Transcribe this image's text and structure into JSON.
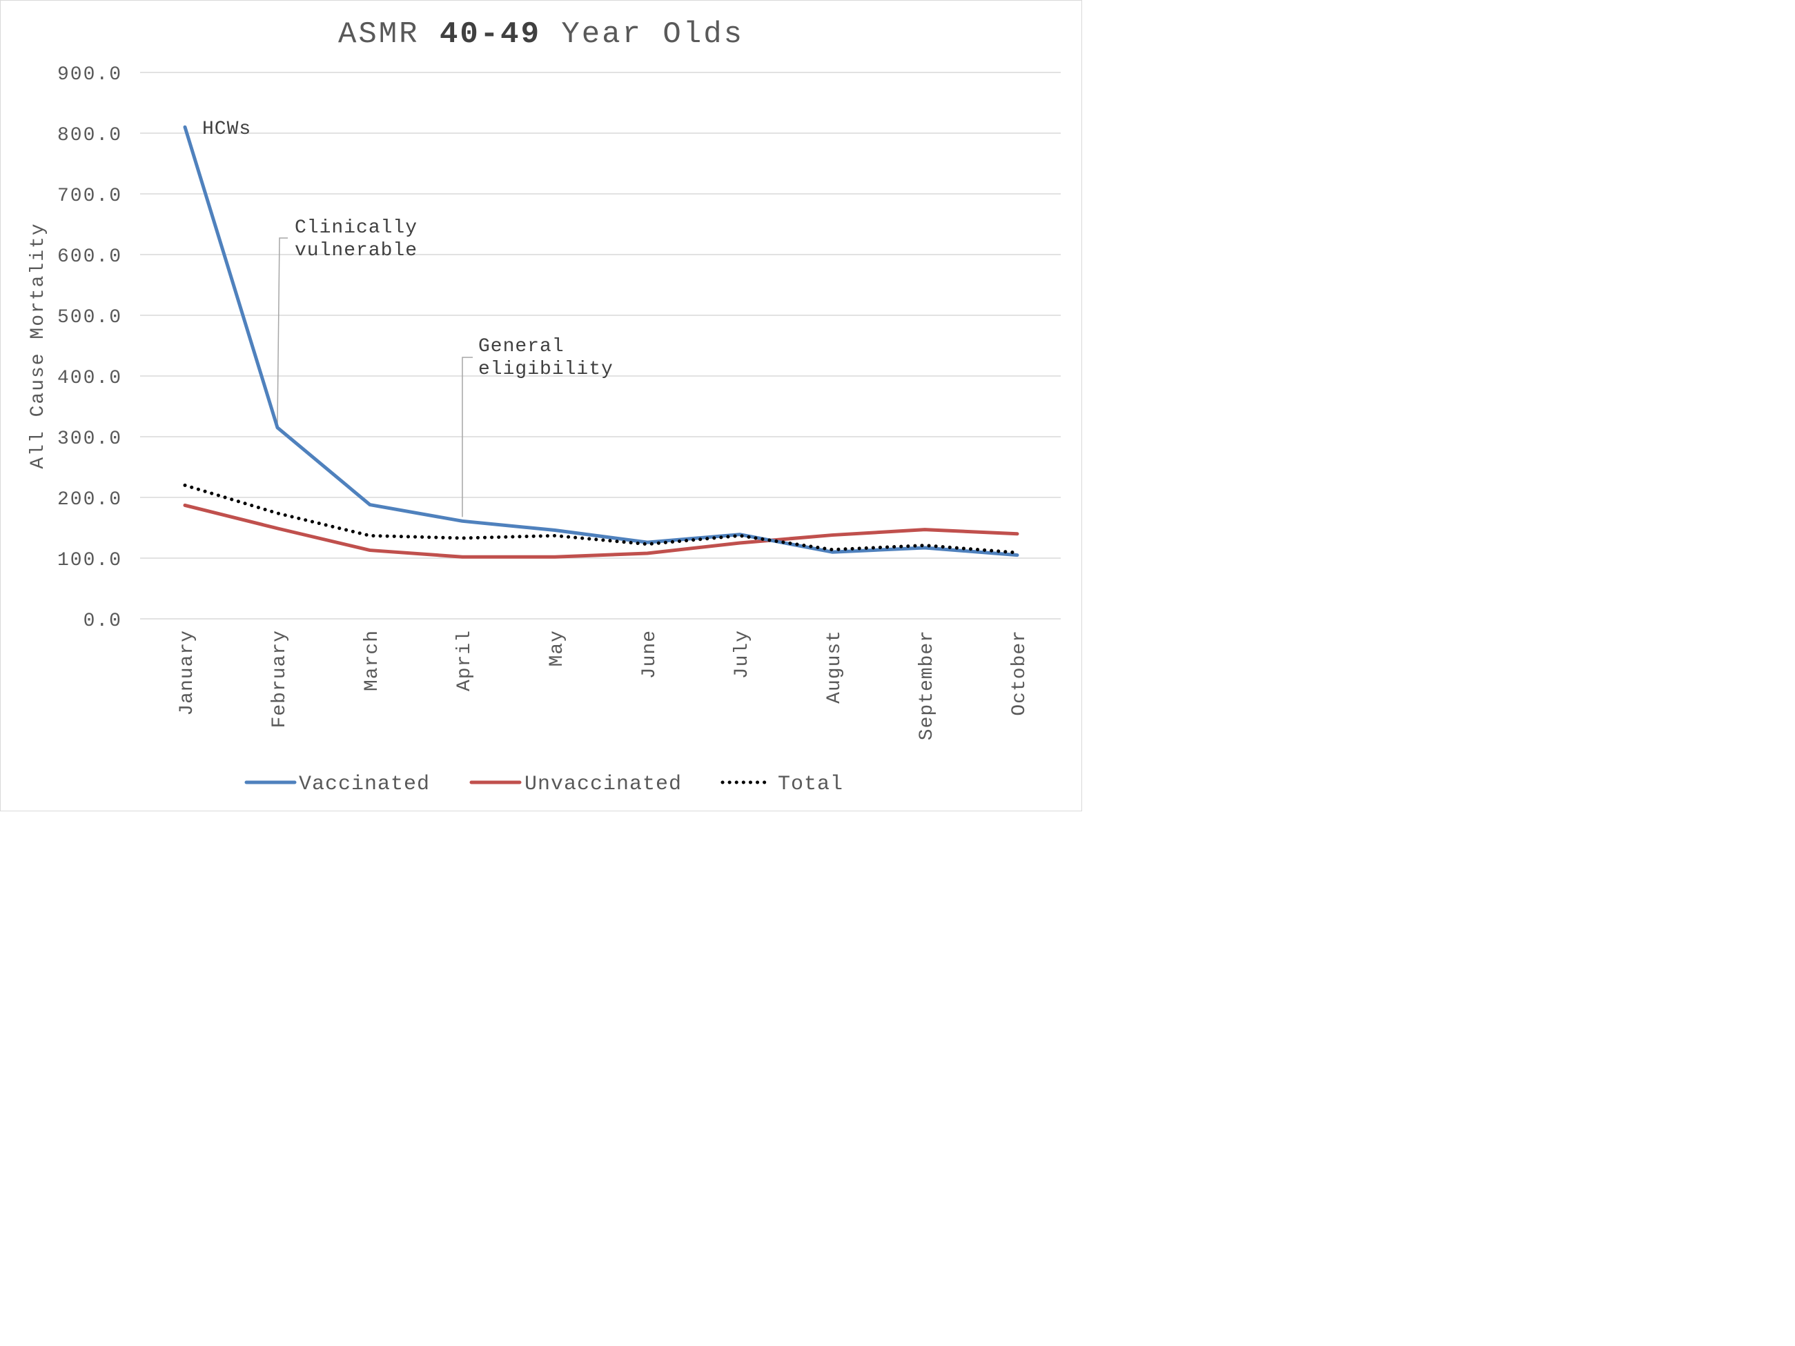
{
  "chart_data": {
    "type": "line",
    "title": {
      "prefix": "ASMR ",
      "bold": "40-49",
      "suffix": " Year Olds"
    },
    "ylabel": "All Cause Mortality",
    "xlabel": "",
    "ylim": [
      0,
      900
    ],
    "y_ticks": [
      "0.0",
      "100.0",
      "200.0",
      "300.0",
      "400.0",
      "500.0",
      "600.0",
      "700.0",
      "800.0",
      "900.0"
    ],
    "grid": true,
    "legend_position": "bottom",
    "categories": [
      "January",
      "February",
      "March",
      "April",
      "May",
      "June",
      "July",
      "August",
      "September",
      "October"
    ],
    "series": [
      {
        "name": "Vaccinated",
        "color": "#4f81bd",
        "style": "solid",
        "values": [
          810,
          315,
          188,
          161,
          146,
          126,
          139,
          110,
          117,
          105
        ]
      },
      {
        "name": "Unvaccinated",
        "color": "#c0504d",
        "style": "solid",
        "values": [
          187,
          149,
          113,
          102,
          102,
          108,
          125,
          138,
          147,
          140
        ]
      },
      {
        "name": "Total",
        "color": "#000000",
        "style": "dotted",
        "values": [
          220,
          174,
          137,
          133,
          137,
          123,
          137,
          114,
          121,
          109
        ]
      }
    ],
    "annotations": [
      {
        "lines": [
          "HCWs"
        ],
        "category": "January",
        "series": "Vaccinated"
      },
      {
        "lines": [
          "Clinically",
          "vulnerable"
        ],
        "category": "February",
        "series": "Vaccinated"
      },
      {
        "lines": [
          "General",
          "eligibility"
        ],
        "category": "April",
        "series": "Vaccinated"
      }
    ]
  }
}
